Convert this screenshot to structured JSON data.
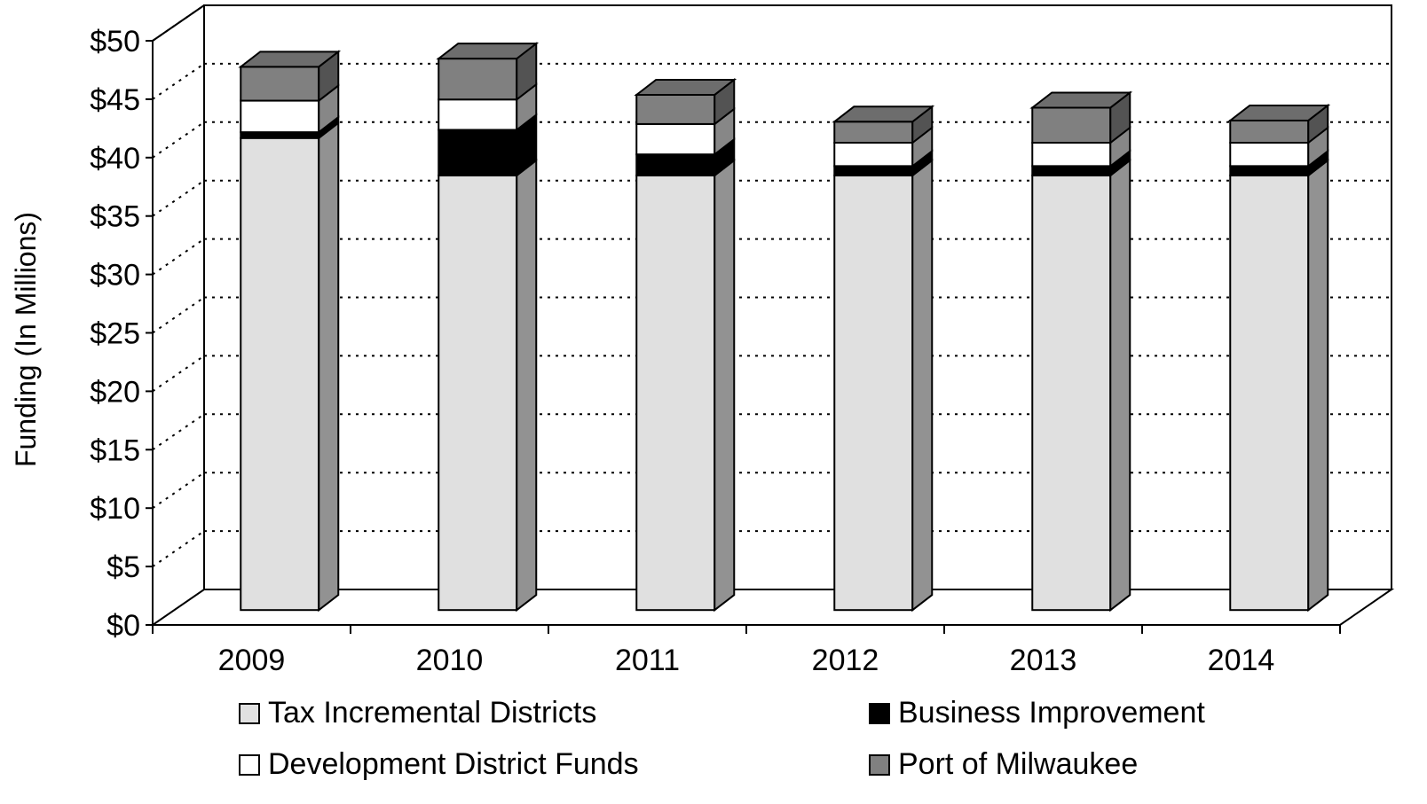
{
  "chart_data": {
    "type": "bar",
    "stacked": true,
    "three_d": true,
    "title": "",
    "xlabel": "",
    "ylabel": "Funding (In Millions)",
    "ylim": [
      0,
      50
    ],
    "y_step": 5,
    "y_tick_prefix": "$",
    "grid": "dotted horizontal",
    "legend_position": "bottom",
    "categories": [
      "2009",
      "2010",
      "2011",
      "2012",
      "2013",
      "2014"
    ],
    "series": [
      {
        "name": "Tax Incremental Districts",
        "color": "#e0e0e0",
        "values": [
          40.4,
          37.2,
          37.2,
          37.2,
          37.2,
          37.2
        ]
      },
      {
        "name": "Business Improvement",
        "color": "#000000",
        "values": [
          0.5,
          3.9,
          1.8,
          0.8,
          0.8,
          0.8
        ]
      },
      {
        "name": "Development District Funds",
        "color": "#ffffff",
        "values": [
          2.7,
          2.6,
          2.6,
          2.0,
          2.0,
          2.0
        ]
      },
      {
        "name": "Port of Milwaukee",
        "color": "#808080",
        "values": [
          2.9,
          3.5,
          2.5,
          1.8,
          3.0,
          1.9
        ]
      }
    ]
  }
}
